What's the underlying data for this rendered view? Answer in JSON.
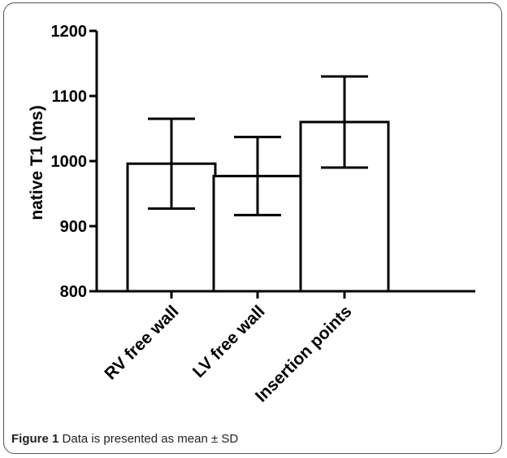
{
  "figure": {
    "label": "Figure 1",
    "caption": "Data is presented as mean ± SD"
  },
  "chart_data": {
    "type": "bar",
    "title": "",
    "xlabel": "",
    "ylabel": "native T1 (ms)",
    "ylim": [
      800,
      1200
    ],
    "yticks": [
      800,
      900,
      1000,
      1100,
      1200
    ],
    "categories": [
      "RV free wall",
      "LV free wall",
      "Insertion points"
    ],
    "values": [
      996,
      977,
      1060
    ],
    "error": [
      69,
      60,
      70
    ],
    "bar_fill": "#ffffff",
    "bar_stroke": "#000000",
    "grid": false,
    "legend": "none"
  }
}
